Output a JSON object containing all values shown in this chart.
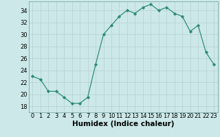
{
  "x": [
    0,
    1,
    2,
    3,
    4,
    5,
    6,
    7,
    8,
    9,
    10,
    11,
    12,
    13,
    14,
    15,
    16,
    17,
    18,
    19,
    20,
    21,
    22,
    23
  ],
  "y": [
    23,
    22.5,
    20.5,
    20.5,
    19.5,
    18.5,
    18.5,
    19.5,
    25,
    30,
    31.5,
    33,
    34,
    33.5,
    34.5,
    35,
    34,
    34.5,
    33.5,
    33,
    30.5,
    31.5,
    27,
    25
  ],
  "line_color": "#2e8b7a",
  "marker": "D",
  "marker_size": 2.2,
  "bg_color": "#cce8e8",
  "grid_color": "#b8d4d4",
  "xlabel": "Humidex (Indice chaleur)",
  "xlim": [
    -0.5,
    23.5
  ],
  "ylim": [
    17,
    35.5
  ],
  "yticks": [
    18,
    20,
    22,
    24,
    26,
    28,
    30,
    32,
    34
  ],
  "xticks": [
    0,
    1,
    2,
    3,
    4,
    5,
    6,
    7,
    8,
    9,
    10,
    11,
    12,
    13,
    14,
    15,
    16,
    17,
    18,
    19,
    20,
    21,
    22,
    23
  ],
  "axis_fontsize": 6.5,
  "tick_fontsize": 6.0,
  "xlabel_fontsize": 7.5
}
